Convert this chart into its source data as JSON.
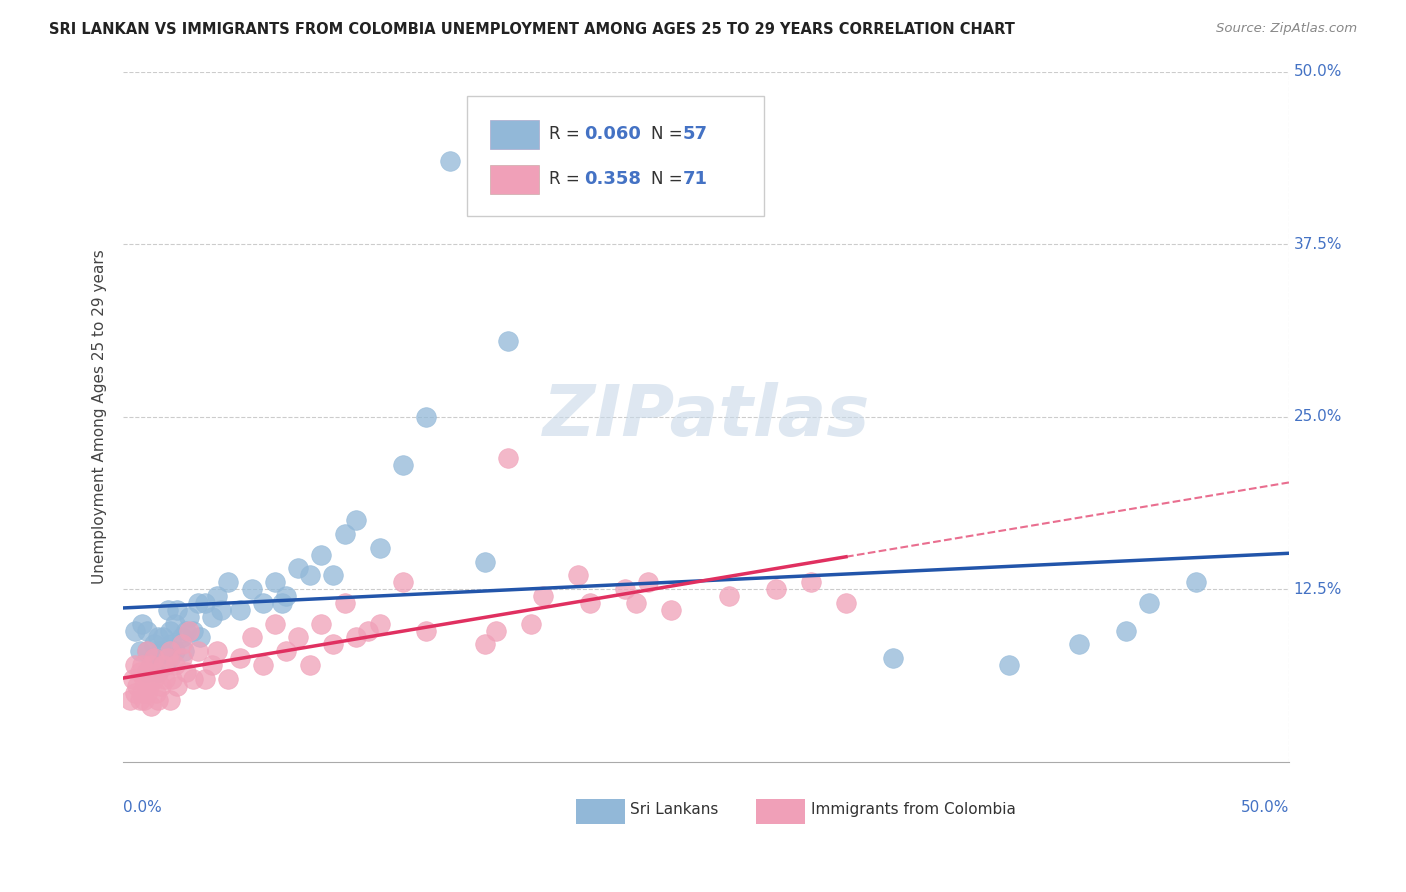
{
  "title": "SRI LANKAN VS IMMIGRANTS FROM COLOMBIA UNEMPLOYMENT AMONG AGES 25 TO 29 YEARS CORRELATION CHART",
  "source": "Source: ZipAtlas.com",
  "ylabel": "Unemployment Among Ages 25 to 29 years",
  "xlim": [
    0.0,
    0.5
  ],
  "ylim": [
    0.0,
    0.5
  ],
  "xticks": [
    0.0,
    0.1,
    0.2,
    0.3,
    0.4,
    0.5
  ],
  "yticks": [
    0.0,
    0.125,
    0.25,
    0.375,
    0.5
  ],
  "xticklabels_show": [
    "0.0%",
    "50.0%"
  ],
  "yticklabels_show": [
    "12.5%",
    "25.0%",
    "37.5%",
    "50.0%"
  ],
  "sl_color": "#92b8d8",
  "co_color": "#f0a0b8",
  "sl_line_color": "#2255aa",
  "co_line_color": "#e03060",
  "watermark_color": "#c8d8e8",
  "R_color": "#4472c4",
  "legend_entries": [
    {
      "R": "0.060",
      "N": "57",
      "color": "#92b8d8"
    },
    {
      "R": "0.358",
      "N": "71",
      "color": "#f0a0b8"
    }
  ],
  "sri_lankan_x": [
    0.005,
    0.007,
    0.008,
    0.01,
    0.01,
    0.01,
    0.012,
    0.013,
    0.014,
    0.015,
    0.015,
    0.016,
    0.017,
    0.018,
    0.019,
    0.02,
    0.02,
    0.021,
    0.022,
    0.022,
    0.023,
    0.025,
    0.026,
    0.027,
    0.028,
    0.03,
    0.032,
    0.033,
    0.035,
    0.038,
    0.04,
    0.042,
    0.045,
    0.05,
    0.055,
    0.06,
    0.065,
    0.068,
    0.07,
    0.075,
    0.08,
    0.085,
    0.09,
    0.095,
    0.1,
    0.11,
    0.12,
    0.13,
    0.14,
    0.155,
    0.165,
    0.33,
    0.38,
    0.41,
    0.43,
    0.44,
    0.46
  ],
  "sri_lankan_y": [
    0.095,
    0.08,
    0.1,
    0.065,
    0.08,
    0.095,
    0.07,
    0.085,
    0.075,
    0.065,
    0.09,
    0.08,
    0.09,
    0.07,
    0.11,
    0.075,
    0.095,
    0.085,
    0.08,
    0.1,
    0.11,
    0.09,
    0.08,
    0.095,
    0.105,
    0.095,
    0.115,
    0.09,
    0.115,
    0.105,
    0.12,
    0.11,
    0.13,
    0.11,
    0.125,
    0.115,
    0.13,
    0.115,
    0.12,
    0.14,
    0.135,
    0.15,
    0.135,
    0.165,
    0.175,
    0.155,
    0.215,
    0.25,
    0.435,
    0.145,
    0.305,
    0.075,
    0.07,
    0.085,
    0.095,
    0.115,
    0.13
  ],
  "colombia_x": [
    0.003,
    0.004,
    0.005,
    0.005,
    0.006,
    0.007,
    0.007,
    0.008,
    0.008,
    0.009,
    0.009,
    0.01,
    0.01,
    0.01,
    0.011,
    0.012,
    0.012,
    0.013,
    0.013,
    0.014,
    0.015,
    0.015,
    0.016,
    0.017,
    0.018,
    0.019,
    0.02,
    0.02,
    0.021,
    0.022,
    0.023,
    0.025,
    0.025,
    0.027,
    0.028,
    0.03,
    0.032,
    0.035,
    0.038,
    0.04,
    0.045,
    0.05,
    0.055,
    0.06,
    0.065,
    0.07,
    0.075,
    0.08,
    0.085,
    0.09,
    0.095,
    0.1,
    0.105,
    0.11,
    0.12,
    0.13,
    0.155,
    0.16,
    0.165,
    0.175,
    0.18,
    0.195,
    0.2,
    0.215,
    0.22,
    0.225,
    0.235,
    0.26,
    0.28,
    0.295,
    0.31
  ],
  "colombia_y": [
    0.045,
    0.06,
    0.05,
    0.07,
    0.055,
    0.045,
    0.065,
    0.05,
    0.07,
    0.045,
    0.06,
    0.05,
    0.065,
    0.08,
    0.055,
    0.04,
    0.07,
    0.06,
    0.075,
    0.05,
    0.045,
    0.065,
    0.055,
    0.07,
    0.06,
    0.075,
    0.045,
    0.08,
    0.06,
    0.07,
    0.055,
    0.075,
    0.085,
    0.065,
    0.095,
    0.06,
    0.08,
    0.06,
    0.07,
    0.08,
    0.06,
    0.075,
    0.09,
    0.07,
    0.1,
    0.08,
    0.09,
    0.07,
    0.1,
    0.085,
    0.115,
    0.09,
    0.095,
    0.1,
    0.13,
    0.095,
    0.085,
    0.095,
    0.22,
    0.1,
    0.12,
    0.135,
    0.115,
    0.125,
    0.115,
    0.13,
    0.11,
    0.12,
    0.125,
    0.13,
    0.115
  ]
}
